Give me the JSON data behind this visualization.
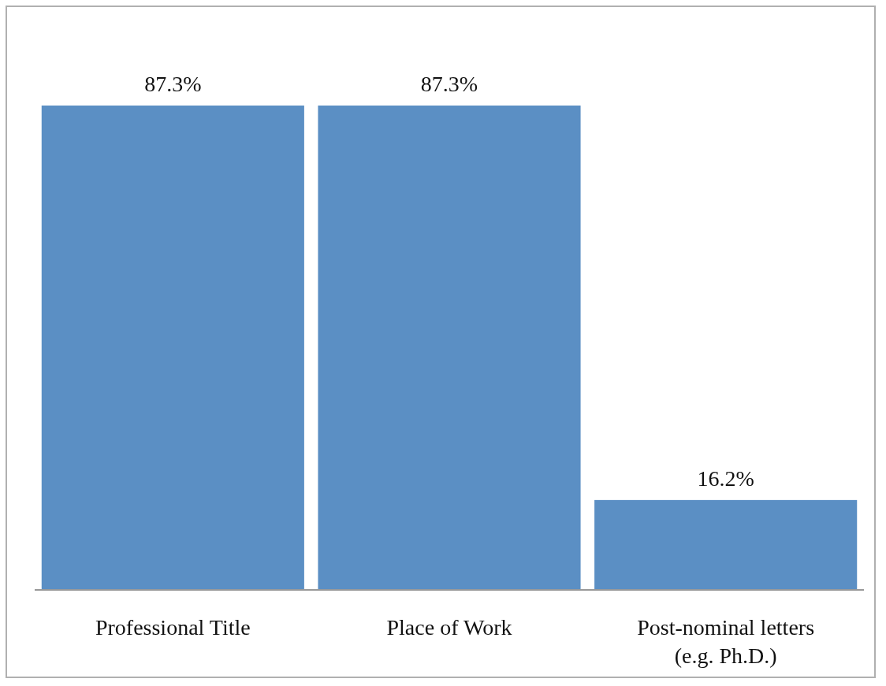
{
  "chart_data": {
    "type": "bar",
    "categories": [
      "Professional Title",
      "Place of Work",
      "Post-nominal letters (e.g. Ph.D.)"
    ],
    "values": [
      87.3,
      87.3,
      16.2
    ],
    "value_labels": [
      "87.3%",
      "87.3%",
      "16.2%"
    ],
    "color": "#5b8fc4"
  }
}
